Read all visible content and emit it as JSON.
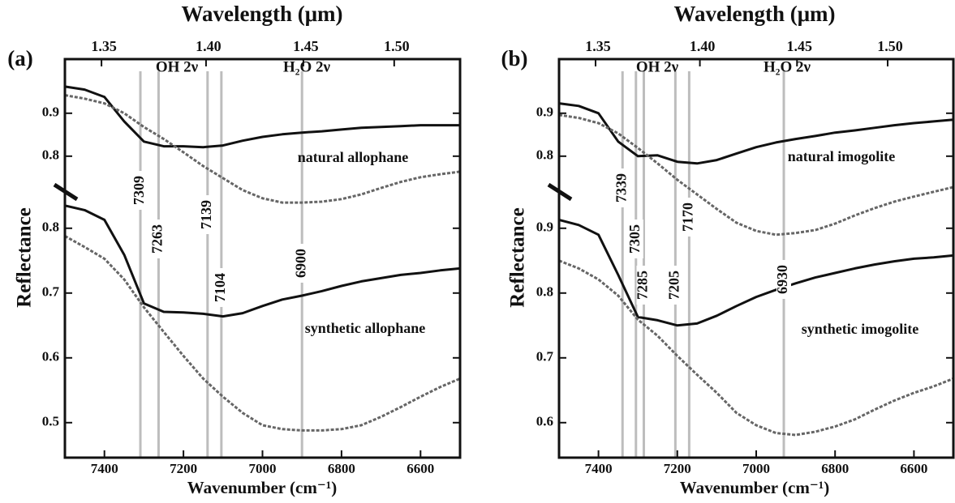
{
  "chart_data": [
    {
      "type": "line",
      "panel_label": "(a)",
      "x2label": "Wavelength (μm)",
      "xlabel": "Wavenumber (cm⁻¹)",
      "ylabel": "Reflectance",
      "xlim": [
        7500,
        6500
      ],
      "xticks": [
        7400,
        7200,
        7000,
        6800,
        6600
      ],
      "x2ticks": [
        1.35,
        {
          "value": 1.4,
          "label": "1.40"
        },
        1.45,
        {
          "value": 1.5,
          "label": "1.50"
        }
      ],
      "ylim": [
        0.446,
        1.061
      ],
      "yticks": [
        0.5,
        0.6,
        0.7,
        0.8
      ],
      "y2lim": [
        0.098,
        1.026
      ],
      "y2ticks": [
        0.8,
        0.9
      ],
      "annotations": [
        "OH 2ν",
        "H₂O 2ν"
      ],
      "vlines": [
        7309,
        7263,
        7139,
        7104,
        6900
      ],
      "vline_color": "#bdbdbd",
      "x": [
        7500,
        7450,
        7400,
        7350,
        7300,
        7250,
        7200,
        7150,
        7100,
        7050,
        7000,
        6950,
        6900,
        6850,
        6800,
        6750,
        6700,
        6650,
        6600,
        6550,
        6500
      ],
      "series": [
        {
          "name": "natural allophane",
          "color": "#111111",
          "dash": "solid",
          "axis": "y2",
          "values": [
            0.962,
            0.955,
            0.938,
            0.881,
            0.834,
            0.823,
            0.823,
            0.821,
            0.825,
            0.836,
            0.845,
            0.851,
            0.855,
            0.858,
            0.862,
            0.866,
            0.868,
            0.87,
            0.872,
            0.872,
            0.872
          ]
        },
        {
          "name": null,
          "color": "#666666",
          "dash": "dotted",
          "axis": "y2",
          "values": [
            0.942,
            0.934,
            0.923,
            0.9,
            0.868,
            0.84,
            0.809,
            0.777,
            0.749,
            0.721,
            0.702,
            0.692,
            0.692,
            0.694,
            0.7,
            0.711,
            0.726,
            0.74,
            0.751,
            0.758,
            0.764
          ]
        },
        {
          "name": "synthetic allophane",
          "color": "#111111",
          "dash": "solid",
          "values": [
            0.835,
            0.828,
            0.813,
            0.759,
            0.684,
            0.671,
            0.67,
            0.668,
            0.664,
            0.669,
            0.68,
            0.69,
            0.696,
            0.703,
            0.711,
            0.718,
            0.723,
            0.728,
            0.731,
            0.735,
            0.738
          ]
        },
        {
          "name": null,
          "color": "#666666",
          "dash": "dotted",
          "values": [
            0.788,
            0.771,
            0.753,
            0.721,
            0.678,
            0.64,
            0.603,
            0.568,
            0.54,
            0.515,
            0.496,
            0.49,
            0.488,
            0.488,
            0.49,
            0.496,
            0.509,
            0.524,
            0.54,
            0.555,
            0.568
          ]
        }
      ]
    },
    {
      "type": "line",
      "panel_label": "(b)",
      "x2label": "Wavelength (μm)",
      "xlabel": "Wavenumber (cm⁻¹)",
      "ylabel": "Reflectance",
      "xlim": [
        7500,
        6500
      ],
      "xticks": [
        7400,
        7200,
        7000,
        6800,
        6600
      ],
      "x2ticks": [
        1.35,
        {
          "value": 1.4,
          "label": "1.40"
        },
        1.45,
        {
          "value": 1.5,
          "label": "1.50"
        }
      ],
      "ylim": [
        0.546,
        1.161
      ],
      "yticks": [
        0.6,
        0.7,
        0.8,
        0.9
      ],
      "y2lim": [
        0.098,
        1.026
      ],
      "y2ticks": [
        0.8,
        0.9
      ],
      "annotations": [
        "OH 2ν",
        "H₂O 2ν"
      ],
      "vlines": [
        7339,
        7305,
        7285,
        7205,
        7170,
        6930
      ],
      "vline_color": "#bdbdbd",
      "x": [
        7500,
        7450,
        7400,
        7350,
        7300,
        7250,
        7200,
        7150,
        7100,
        7050,
        7000,
        6950,
        6900,
        6850,
        6800,
        6750,
        6700,
        6650,
        6600,
        6550,
        6500
      ],
      "series": [
        {
          "name": "natural imogolite",
          "color": "#111111",
          "dash": "solid",
          "axis": "y2",
          "values": [
            0.923,
            0.917,
            0.9,
            0.834,
            0.8,
            0.802,
            0.787,
            0.783,
            0.791,
            0.806,
            0.821,
            0.832,
            0.84,
            0.847,
            0.855,
            0.86,
            0.866,
            0.872,
            0.877,
            0.881,
            0.885
          ]
        },
        {
          "name": null,
          "color": "#666666",
          "dash": "dotted",
          "axis": "y2",
          "values": [
            0.896,
            0.889,
            0.877,
            0.853,
            0.819,
            0.783,
            0.745,
            0.711,
            0.677,
            0.645,
            0.626,
            0.617,
            0.621,
            0.628,
            0.643,
            0.662,
            0.679,
            0.694,
            0.706,
            0.717,
            0.728
          ]
        },
        {
          "name": "synthetic imogolite",
          "color": "#111111",
          "dash": "solid",
          "values": [
            0.913,
            0.905,
            0.89,
            0.828,
            0.763,
            0.758,
            0.75,
            0.753,
            0.765,
            0.78,
            0.794,
            0.805,
            0.815,
            0.824,
            0.831,
            0.838,
            0.844,
            0.849,
            0.853,
            0.855,
            0.858
          ]
        },
        {
          "name": null,
          "color": "#666666",
          "dash": "dotted",
          "values": [
            0.85,
            0.838,
            0.821,
            0.796,
            0.759,
            0.734,
            0.703,
            0.674,
            0.646,
            0.615,
            0.596,
            0.584,
            0.581,
            0.586,
            0.594,
            0.605,
            0.62,
            0.634,
            0.646,
            0.656,
            0.668
          ]
        }
      ]
    }
  ]
}
